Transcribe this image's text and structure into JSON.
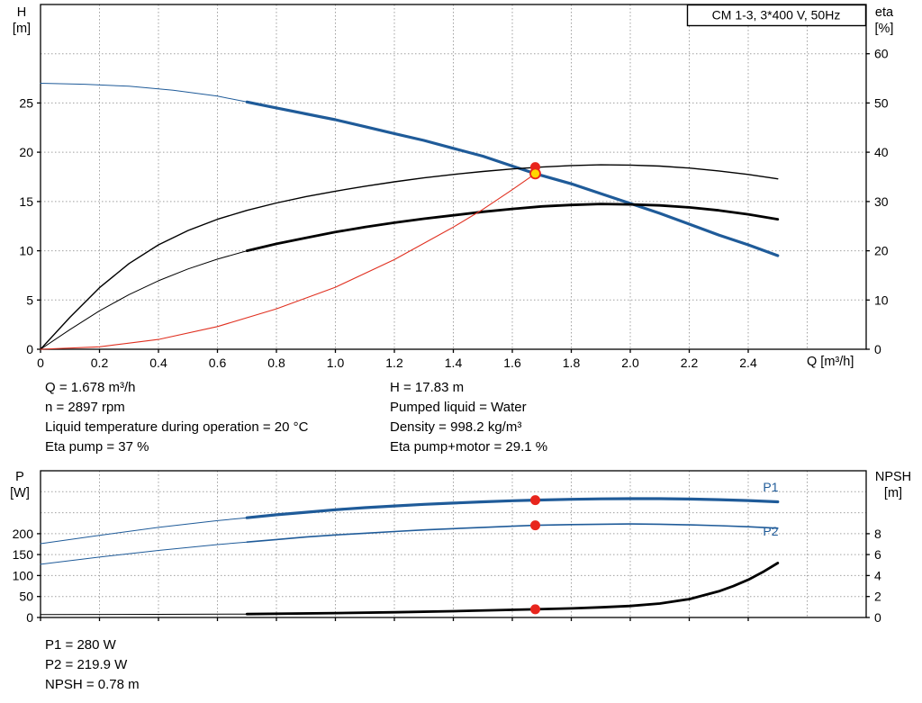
{
  "legend": {
    "label": "CM 1-3, 3*400 V, 50Hz"
  },
  "colors": {
    "blue": "#1f5b99",
    "black": "#000000",
    "red": "#e03020",
    "marker_red": "#e8251d",
    "marker_yellow": "#ffd700",
    "grid": "#a0a0a0",
    "axis": "#000000"
  },
  "annotations": {
    "top_left": [
      "Q = 1.678 m³/h",
      "n = 2897 rpm",
      "Liquid temperature during operation = 20 °C",
      "Eta pump = 37 %"
    ],
    "top_right": [
      "H = 17.83 m",
      "Pumped liquid = Water",
      "Density = 998.2 kg/m³",
      "Eta pump+motor = 29.1 %"
    ],
    "bottom": [
      "P1 = 280 W",
      "P2 = 219.9 W",
      "NPSH = 0.78 m"
    ]
  },
  "chart_data": [
    {
      "id": "qh-eta-chart",
      "type": "line",
      "title": "CM 1-3, 3*400 V, 50Hz",
      "x": {
        "label": "Q [m³/h]",
        "min": 0,
        "max": 2.8,
        "ticks": [
          0,
          0.2,
          0.4,
          0.6,
          0.8,
          1.0,
          1.2,
          1.4,
          1.6,
          1.8,
          2.0,
          2.2,
          2.4
        ],
        "tick_labels": [
          "0",
          "0.2",
          "0.4",
          "0.6",
          "0.8",
          "1.0",
          "1.2",
          "1.4",
          "1.6",
          "1.8",
          "2.0",
          "2.2",
          "2.4"
        ],
        "grid": [
          0.2,
          0.4,
          0.6,
          0.8,
          1.0,
          1.2,
          1.4,
          1.6,
          1.8,
          2.0,
          2.2,
          2.4,
          2.6
        ]
      },
      "y_left": {
        "name": "H",
        "unit": "[m]",
        "min": 0,
        "max": 35,
        "ticks": [
          0,
          5,
          10,
          15,
          20,
          25
        ],
        "tick_labels": [
          "0",
          "5",
          "10",
          "15",
          "20",
          "25"
        ],
        "grid": [
          5,
          10,
          15,
          20,
          25,
          30
        ]
      },
      "y_right": {
        "name": "eta",
        "unit": "[%]",
        "min": 0,
        "max": 70,
        "ticks": [
          0,
          10,
          20,
          30,
          40,
          50,
          60
        ],
        "tick_labels": [
          "0",
          "10",
          "20",
          "30",
          "40",
          "50",
          "60"
        ]
      },
      "series": [
        {
          "name": "head-thin",
          "axis": "left",
          "color": "blue",
          "width": 1,
          "points": [
            [
              0,
              27.0
            ],
            [
              0.15,
              26.9
            ],
            [
              0.3,
              26.7
            ],
            [
              0.45,
              26.3
            ],
            [
              0.6,
              25.7
            ],
            [
              0.7,
              25.1
            ]
          ]
        },
        {
          "name": "head",
          "axis": "left",
          "color": "blue",
          "width": 3.2,
          "points": [
            [
              0.7,
              25.1
            ],
            [
              0.8,
              24.5
            ],
            [
              0.9,
              23.9
            ],
            [
              1.0,
              23.3
            ],
            [
              1.1,
              22.6
            ],
            [
              1.2,
              21.9
            ],
            [
              1.3,
              21.2
            ],
            [
              1.4,
              20.4
            ],
            [
              1.5,
              19.6
            ],
            [
              1.6,
              18.6
            ],
            [
              1.678,
              17.83
            ],
            [
              1.8,
              16.8
            ],
            [
              1.9,
              15.8
            ],
            [
              2.0,
              14.8
            ],
            [
              2.1,
              13.8
            ],
            [
              2.2,
              12.7
            ],
            [
              2.3,
              11.6
            ],
            [
              2.4,
              10.6
            ],
            [
              2.5,
              9.5
            ]
          ]
        },
        {
          "name": "eta-pump",
          "axis": "right",
          "color": "black",
          "width": 1.4,
          "points": [
            [
              0,
              0
            ],
            [
              0.1,
              6.5
            ],
            [
              0.2,
              12.5
            ],
            [
              0.3,
              17.4
            ],
            [
              0.4,
              21.2
            ],
            [
              0.5,
              24.1
            ],
            [
              0.6,
              26.4
            ],
            [
              0.7,
              28.2
            ],
            [
              0.8,
              29.7
            ],
            [
              0.9,
              31.0
            ],
            [
              1.0,
              32.1
            ],
            [
              1.1,
              33.1
            ],
            [
              1.2,
              34.0
            ],
            [
              1.3,
              34.8
            ],
            [
              1.4,
              35.5
            ],
            [
              1.5,
              36.1
            ],
            [
              1.6,
              36.6
            ],
            [
              1.7,
              37.0
            ],
            [
              1.8,
              37.3
            ],
            [
              1.9,
              37.45
            ],
            [
              2.0,
              37.4
            ],
            [
              2.1,
              37.2
            ],
            [
              2.2,
              36.8
            ],
            [
              2.3,
              36.2
            ],
            [
              2.4,
              35.5
            ],
            [
              2.5,
              34.6
            ]
          ]
        },
        {
          "name": "eta-pump-motor-thin",
          "axis": "right",
          "color": "black",
          "width": 1,
          "points": [
            [
              0,
              0
            ],
            [
              0.1,
              4.0
            ],
            [
              0.2,
              7.8
            ],
            [
              0.3,
              11.1
            ],
            [
              0.4,
              13.9
            ],
            [
              0.5,
              16.3
            ],
            [
              0.6,
              18.3
            ],
            [
              0.7,
              20.0
            ]
          ]
        },
        {
          "name": "eta-pump-motor",
          "axis": "right",
          "color": "black",
          "width": 2.8,
          "points": [
            [
              0.7,
              20.0
            ],
            [
              0.8,
              21.4
            ],
            [
              0.9,
              22.6
            ],
            [
              1.0,
              23.8
            ],
            [
              1.1,
              24.8
            ],
            [
              1.2,
              25.7
            ],
            [
              1.3,
              26.5
            ],
            [
              1.4,
              27.2
            ],
            [
              1.5,
              27.9
            ],
            [
              1.6,
              28.5
            ],
            [
              1.7,
              29.0
            ],
            [
              1.8,
              29.3
            ],
            [
              1.9,
              29.5
            ],
            [
              2.0,
              29.4
            ],
            [
              2.1,
              29.2
            ],
            [
              2.2,
              28.8
            ],
            [
              2.3,
              28.2
            ],
            [
              2.4,
              27.4
            ],
            [
              2.5,
              26.4
            ]
          ]
        },
        {
          "name": "system-curve",
          "axis": "left",
          "color": "red",
          "width": 1.1,
          "points": [
            [
              0,
              0
            ],
            [
              0.2,
              0.25
            ],
            [
              0.4,
              1.0
            ],
            [
              0.6,
              2.3
            ],
            [
              0.8,
              4.1
            ],
            [
              1.0,
              6.3
            ],
            [
              1.2,
              9.1
            ],
            [
              1.4,
              12.4
            ],
            [
              1.5,
              14.2
            ],
            [
              1.6,
              16.2
            ],
            [
              1.678,
              17.83
            ]
          ]
        }
      ],
      "markers": [
        {
          "x": 1.678,
          "value": 37.0,
          "axis": "right",
          "style": "point"
        },
        {
          "x": 1.678,
          "value": 17.83,
          "axis": "left",
          "style": "duty"
        }
      ]
    },
    {
      "id": "power-npsh-chart",
      "type": "line",
      "title": "",
      "x": {
        "label": "",
        "min": 0,
        "max": 2.8,
        "ticks": [
          0,
          0.2,
          0.4,
          0.6,
          0.8,
          1.0,
          1.2,
          1.4,
          1.6,
          1.8,
          2.0,
          2.2,
          2.4
        ],
        "tick_labels": [],
        "grid": [
          0.2,
          0.4,
          0.6,
          0.8,
          1.0,
          1.2,
          1.4,
          1.6,
          1.8,
          2.0,
          2.2,
          2.4,
          2.6
        ]
      },
      "y_left": {
        "name": "P",
        "unit": "[W]",
        "min": 0,
        "max": 350,
        "ticks": [
          0,
          50,
          100,
          150,
          200
        ],
        "tick_labels": [
          "0",
          "50",
          "100",
          "150",
          "200"
        ],
        "grid": [
          50,
          100,
          150,
          200,
          250,
          300
        ]
      },
      "y_right": {
        "name": "NPSH",
        "unit": "[m]",
        "min": 0,
        "max": 14,
        "ticks": [
          0,
          2,
          4,
          6,
          8
        ],
        "tick_labels": [
          "0",
          "2",
          "4",
          "6",
          "8"
        ]
      },
      "series": [
        {
          "name": "p1-thin",
          "axis": "left",
          "color": "blue",
          "width": 1,
          "points": [
            [
              0,
              176
            ],
            [
              0.2,
              196
            ],
            [
              0.4,
              215
            ],
            [
              0.6,
              231
            ],
            [
              0.7,
              238
            ]
          ]
        },
        {
          "name": "p1",
          "axis": "left",
          "color": "blue",
          "width": 3.2,
          "points": [
            [
              0.7,
              238
            ],
            [
              0.8,
              245
            ],
            [
              0.9,
              251
            ],
            [
              1.0,
              257
            ],
            [
              1.1,
              262
            ],
            [
              1.2,
              266
            ],
            [
              1.3,
              270
            ],
            [
              1.4,
              273
            ],
            [
              1.5,
              276
            ],
            [
              1.6,
              278.5
            ],
            [
              1.678,
              280
            ],
            [
              1.8,
              282
            ],
            [
              1.9,
              283
            ],
            [
              2.0,
              283.5
            ],
            [
              2.1,
              283.5
            ],
            [
              2.2,
              282.5
            ],
            [
              2.3,
              281
            ],
            [
              2.4,
              279
            ],
            [
              2.5,
              276
            ]
          ]
        },
        {
          "name": "p2-thin",
          "axis": "left",
          "color": "blue",
          "width": 1,
          "points": [
            [
              0,
              127
            ],
            [
              0.2,
              144
            ],
            [
              0.4,
              160
            ],
            [
              0.6,
              174
            ],
            [
              0.7,
              180
            ]
          ]
        },
        {
          "name": "p2",
          "axis": "left",
          "color": "blue",
          "width": 1.6,
          "points": [
            [
              0.7,
              180
            ],
            [
              0.8,
              186
            ],
            [
              0.9,
              192
            ],
            [
              1.0,
              197
            ],
            [
              1.1,
              201
            ],
            [
              1.2,
              205
            ],
            [
              1.3,
              209
            ],
            [
              1.4,
              212
            ],
            [
              1.5,
              215
            ],
            [
              1.6,
              217.7
            ],
            [
              1.678,
              219.9
            ],
            [
              1.8,
              221.5
            ],
            [
              1.9,
              222.5
            ],
            [
              2.0,
              223
            ],
            [
              2.1,
              222.5
            ],
            [
              2.2,
              221
            ],
            [
              2.3,
              219
            ],
            [
              2.4,
              216.5
            ],
            [
              2.5,
              213
            ]
          ]
        },
        {
          "name": "npsh-thin",
          "axis": "right",
          "color": "black",
          "width": 1,
          "points": [
            [
              0,
              0.28
            ],
            [
              0.4,
              0.3
            ],
            [
              0.7,
              0.33
            ]
          ]
        },
        {
          "name": "npsh",
          "axis": "right",
          "color": "black",
          "width": 2.8,
          "points": [
            [
              0.7,
              0.33
            ],
            [
              1.0,
              0.42
            ],
            [
              1.2,
              0.5
            ],
            [
              1.4,
              0.6
            ],
            [
              1.678,
              0.78
            ],
            [
              1.8,
              0.87
            ],
            [
              1.9,
              0.97
            ],
            [
              2.0,
              1.1
            ],
            [
              2.1,
              1.33
            ],
            [
              2.2,
              1.75
            ],
            [
              2.3,
              2.5
            ],
            [
              2.35,
              3.0
            ],
            [
              2.4,
              3.6
            ],
            [
              2.45,
              4.35
            ],
            [
              2.5,
              5.2
            ]
          ]
        }
      ],
      "curve_labels": [
        {
          "text": "P1",
          "x": 2.45,
          "value": 301,
          "axis": "left"
        },
        {
          "text": "P2",
          "x": 2.45,
          "value": 195,
          "axis": "left"
        }
      ],
      "markers": [
        {
          "x": 1.678,
          "value": 280,
          "axis": "left",
          "style": "point"
        },
        {
          "x": 1.678,
          "value": 219.9,
          "axis": "left",
          "style": "point"
        },
        {
          "x": 1.678,
          "value": 0.78,
          "axis": "right",
          "style": "point"
        }
      ]
    }
  ]
}
